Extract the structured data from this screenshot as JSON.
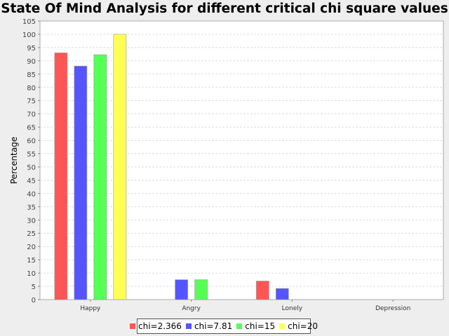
{
  "chart_data": {
    "type": "bar",
    "title": "State Of Mind Analysis for different critical chi square values",
    "xlabel": "",
    "ylabel": "Percentage",
    "categories": [
      "Happy",
      "Angry",
      "Lonely",
      "Depression"
    ],
    "ylim": [
      0,
      105
    ],
    "ytick_step": 5,
    "grid": true,
    "legend_position": "bottom",
    "series": [
      {
        "name": "chi=2.366",
        "color": "#ff5555",
        "values": [
          93,
          0,
          7,
          0
        ]
      },
      {
        "name": "chi=7.81",
        "color": "#5555ff",
        "values": [
          88,
          7.5,
          4.2,
          0
        ]
      },
      {
        "name": "chi=15",
        "color": "#55ff55",
        "values": [
          92.3,
          7.5,
          0,
          0
        ]
      },
      {
        "name": "chi=20",
        "color": "#ffff55",
        "values": [
          100,
          0,
          0,
          0
        ]
      }
    ]
  }
}
